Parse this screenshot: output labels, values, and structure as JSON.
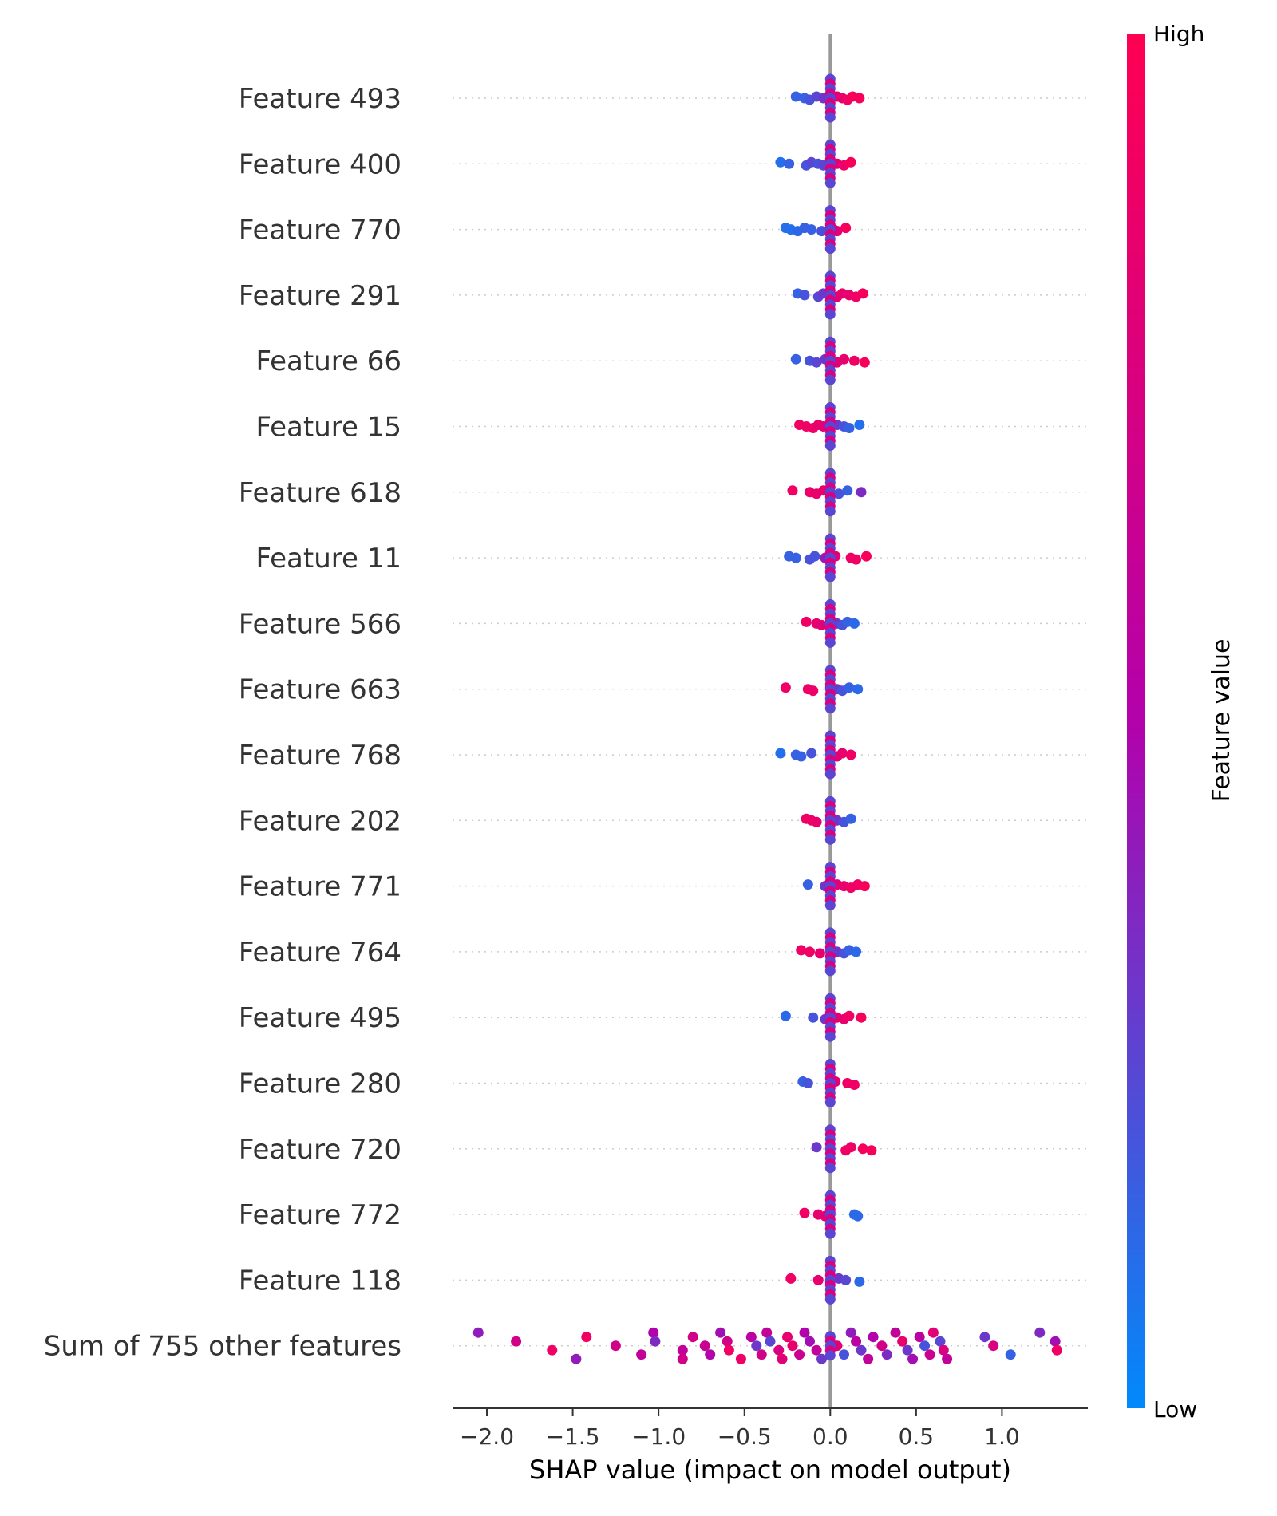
{
  "chart_data": {
    "type": "scatter",
    "subtype": "shap-beeswarm",
    "xlabel": "SHAP value (impact on model output)",
    "xlim": [
      -2.2,
      1.5
    ],
    "xticks": [
      -2.0,
      -1.5,
      -1.0,
      -0.5,
      0.0,
      0.5,
      1.0
    ],
    "xtick_labels": [
      "−2.0",
      "−1.5",
      "−1.0",
      "−0.5",
      "0.0",
      "0.5",
      "1.0"
    ],
    "colorbar": {
      "title": "Feature value",
      "high_label": "High",
      "low_label": "Low",
      "low_color": "#008afb",
      "high_color": "#ff0052"
    },
    "zero_line_color": "#999999",
    "grid": "dotted horizontal per feature",
    "features": [
      {
        "name": "Feature 493",
        "points": [
          [
            -0.2,
            0.15
          ],
          [
            -0.15,
            0.15
          ],
          [
            -0.12,
            0.2
          ],
          [
            -0.08,
            0.25
          ],
          [
            -0.04,
            0.3
          ],
          [
            0.0,
            0.5
          ],
          [
            0.04,
            0.8
          ],
          [
            0.07,
            0.85
          ],
          [
            0.1,
            0.9
          ],
          [
            0.13,
            0.95
          ],
          [
            0.17,
            0.95
          ]
        ]
      },
      {
        "name": "Feature 400",
        "points": [
          [
            -0.29,
            0.1
          ],
          [
            -0.24,
            0.15
          ],
          [
            -0.14,
            0.2
          ],
          [
            -0.11,
            0.25
          ],
          [
            -0.07,
            0.2
          ],
          [
            -0.04,
            0.25
          ],
          [
            0.0,
            0.5
          ],
          [
            0.04,
            0.8
          ],
          [
            0.08,
            0.9
          ],
          [
            0.12,
            0.95
          ]
        ]
      },
      {
        "name": "Feature 770",
        "points": [
          [
            -0.26,
            0.1
          ],
          [
            -0.23,
            0.1
          ],
          [
            -0.19,
            0.12
          ],
          [
            -0.15,
            0.15
          ],
          [
            -0.11,
            0.15
          ],
          [
            -0.05,
            0.2
          ],
          [
            0.0,
            0.85
          ],
          [
            0.02,
            0.9
          ],
          [
            0.04,
            0.8
          ],
          [
            0.09,
            0.95
          ]
        ]
      },
      {
        "name": "Feature 291",
        "points": [
          [
            -0.19,
            0.15
          ],
          [
            -0.15,
            0.2
          ],
          [
            -0.07,
            0.25
          ],
          [
            -0.04,
            0.3
          ],
          [
            0.0,
            0.5
          ],
          [
            0.04,
            0.8
          ],
          [
            0.07,
            0.85
          ],
          [
            0.11,
            0.85
          ],
          [
            0.15,
            0.9
          ],
          [
            0.19,
            0.95
          ]
        ]
      },
      {
        "name": "Feature 66",
        "points": [
          [
            -0.2,
            0.15
          ],
          [
            -0.12,
            0.2
          ],
          [
            -0.08,
            0.25
          ],
          [
            -0.03,
            0.3
          ],
          [
            0.0,
            0.5
          ],
          [
            0.04,
            0.8
          ],
          [
            0.08,
            0.85
          ],
          [
            0.14,
            0.9
          ],
          [
            0.2,
            0.95
          ]
        ]
      },
      {
        "name": "Feature 15",
        "points": [
          [
            -0.18,
            0.9
          ],
          [
            -0.14,
            0.9
          ],
          [
            -0.1,
            0.88
          ],
          [
            -0.07,
            0.85
          ],
          [
            -0.04,
            0.8
          ],
          [
            0.0,
            0.5
          ],
          [
            0.04,
            0.3
          ],
          [
            0.08,
            0.2
          ],
          [
            0.11,
            0.15
          ],
          [
            0.17,
            0.1
          ]
        ]
      },
      {
        "name": "Feature 618",
        "points": [
          [
            -0.22,
            0.9
          ],
          [
            -0.12,
            0.88
          ],
          [
            -0.08,
            0.85
          ],
          [
            -0.04,
            0.85
          ],
          [
            0.0,
            0.5
          ],
          [
            0.05,
            0.2
          ],
          [
            0.1,
            0.15
          ],
          [
            0.18,
            0.35
          ]
        ]
      },
      {
        "name": "Feature 11",
        "points": [
          [
            -0.24,
            0.15
          ],
          [
            -0.2,
            0.15
          ],
          [
            -0.12,
            0.2
          ],
          [
            -0.09,
            0.2
          ],
          [
            -0.03,
            0.4
          ],
          [
            0.0,
            0.5
          ],
          [
            0.03,
            0.8
          ],
          [
            0.12,
            0.9
          ],
          [
            0.15,
            0.9
          ],
          [
            0.21,
            0.95
          ]
        ]
      },
      {
        "name": "Feature 566",
        "points": [
          [
            -0.14,
            0.9
          ],
          [
            -0.08,
            0.85
          ],
          [
            -0.05,
            0.8
          ],
          [
            0.0,
            0.5
          ],
          [
            0.04,
            0.3
          ],
          [
            0.07,
            0.2
          ],
          [
            0.1,
            0.15
          ],
          [
            0.14,
            0.12
          ]
        ]
      },
      {
        "name": "Feature 663",
        "points": [
          [
            -0.26,
            0.9
          ],
          [
            -0.13,
            0.9
          ],
          [
            -0.1,
            0.88
          ],
          [
            0.0,
            0.5
          ],
          [
            0.04,
            0.3
          ],
          [
            0.07,
            0.2
          ],
          [
            0.11,
            0.15
          ],
          [
            0.16,
            0.12
          ]
        ]
      },
      {
        "name": "Feature 768",
        "points": [
          [
            -0.29,
            0.1
          ],
          [
            -0.2,
            0.15
          ],
          [
            -0.17,
            0.15
          ],
          [
            -0.11,
            0.2
          ],
          [
            0.0,
            0.5
          ],
          [
            0.04,
            0.8
          ],
          [
            0.07,
            0.85
          ],
          [
            0.12,
            0.9
          ]
        ]
      },
      {
        "name": "Feature 202",
        "points": [
          [
            -0.14,
            0.9
          ],
          [
            -0.11,
            0.9
          ],
          [
            -0.08,
            0.85
          ],
          [
            0.0,
            0.5
          ],
          [
            0.04,
            0.3
          ],
          [
            0.08,
            0.2
          ],
          [
            0.12,
            0.15
          ]
        ]
      },
      {
        "name": "Feature 771",
        "points": [
          [
            -0.13,
            0.15
          ],
          [
            -0.03,
            0.3
          ],
          [
            0.0,
            0.5
          ],
          [
            0.04,
            0.8
          ],
          [
            0.08,
            0.85
          ],
          [
            0.12,
            0.9
          ],
          [
            0.16,
            0.9
          ],
          [
            0.2,
            0.95
          ]
        ]
      },
      {
        "name": "Feature 764",
        "points": [
          [
            -0.17,
            0.9
          ],
          [
            -0.12,
            0.9
          ],
          [
            -0.06,
            0.85
          ],
          [
            0.0,
            0.5
          ],
          [
            0.04,
            0.3
          ],
          [
            0.08,
            0.2
          ],
          [
            0.11,
            0.15
          ],
          [
            0.15,
            0.12
          ]
        ]
      },
      {
        "name": "Feature 495",
        "points": [
          [
            -0.26,
            0.12
          ],
          [
            -0.1,
            0.2
          ],
          [
            -0.03,
            0.3
          ],
          [
            0.0,
            0.5
          ],
          [
            0.04,
            0.8
          ],
          [
            0.08,
            0.85
          ],
          [
            0.11,
            0.9
          ],
          [
            0.18,
            0.95
          ]
        ]
      },
      {
        "name": "Feature 280",
        "points": [
          [
            -0.16,
            0.15
          ],
          [
            -0.13,
            0.2
          ],
          [
            0.0,
            0.5
          ],
          [
            0.03,
            0.8
          ],
          [
            0.1,
            0.9
          ],
          [
            0.14,
            0.9
          ]
        ]
      },
      {
        "name": "Feature 720",
        "points": [
          [
            -0.08,
            0.3
          ],
          [
            0.0,
            0.5
          ],
          [
            0.09,
            0.9
          ],
          [
            0.12,
            0.9
          ],
          [
            0.19,
            0.95
          ],
          [
            0.24,
            0.95
          ]
        ]
      },
      {
        "name": "Feature 772",
        "points": [
          [
            -0.15,
            0.9
          ],
          [
            -0.07,
            0.85
          ],
          [
            -0.03,
            0.8
          ],
          [
            0.0,
            0.5
          ],
          [
            0.14,
            0.12
          ],
          [
            0.16,
            0.12
          ]
        ]
      },
      {
        "name": "Feature 118",
        "points": [
          [
            -0.23,
            0.9
          ],
          [
            -0.07,
            0.85
          ],
          [
            0.0,
            0.5
          ],
          [
            0.05,
            0.3
          ],
          [
            0.09,
            0.25
          ],
          [
            0.17,
            0.12
          ]
        ]
      },
      {
        "name": "Sum of 755 other features",
        "points": [
          [
            -2.05,
            0.4
          ],
          [
            -1.83,
            0.7
          ],
          [
            -1.62,
            0.9
          ],
          [
            -1.48,
            0.4
          ],
          [
            -1.42,
            0.9
          ],
          [
            -1.25,
            0.7
          ],
          [
            -1.1,
            0.6
          ],
          [
            -1.03,
            0.5
          ],
          [
            -1.02,
            0.35
          ],
          [
            -0.86,
            0.6
          ],
          [
            -0.86,
            0.7
          ],
          [
            -0.8,
            0.7
          ],
          [
            -0.73,
            0.65
          ],
          [
            -0.7,
            0.5
          ],
          [
            -0.64,
            0.45
          ],
          [
            -0.6,
            0.7
          ],
          [
            -0.59,
            0.9
          ],
          [
            -0.52,
            0.9
          ],
          [
            -0.46,
            0.55
          ],
          [
            -0.43,
            0.3
          ],
          [
            -0.4,
            0.7
          ],
          [
            -0.37,
            0.6
          ],
          [
            -0.35,
            0.25
          ],
          [
            -0.3,
            0.75
          ],
          [
            -0.28,
            0.8
          ],
          [
            -0.25,
            0.85
          ],
          [
            -0.22,
            0.85
          ],
          [
            -0.18,
            0.65
          ],
          [
            -0.15,
            0.5
          ],
          [
            -0.12,
            0.45
          ],
          [
            -0.08,
            0.6
          ],
          [
            -0.05,
            0.3
          ],
          [
            0.0,
            0.5
          ],
          [
            0.04,
            0.8
          ],
          [
            0.08,
            0.2
          ],
          [
            0.12,
            0.4
          ],
          [
            0.15,
            0.55
          ],
          [
            0.18,
            0.3
          ],
          [
            0.22,
            0.6
          ],
          [
            0.25,
            0.5
          ],
          [
            0.3,
            0.7
          ],
          [
            0.33,
            0.35
          ],
          [
            0.38,
            0.6
          ],
          [
            0.42,
            0.85
          ],
          [
            0.45,
            0.3
          ],
          [
            0.48,
            0.45
          ],
          [
            0.52,
            0.55
          ],
          [
            0.55,
            0.2
          ],
          [
            0.58,
            0.65
          ],
          [
            0.6,
            0.8
          ],
          [
            0.64,
            0.25
          ],
          [
            0.66,
            0.75
          ],
          [
            0.68,
            0.6
          ],
          [
            0.9,
            0.3
          ],
          [
            0.95,
            0.75
          ],
          [
            1.05,
            0.15
          ],
          [
            1.22,
            0.35
          ],
          [
            1.31,
            0.45
          ],
          [
            1.32,
            0.9
          ]
        ]
      }
    ]
  }
}
